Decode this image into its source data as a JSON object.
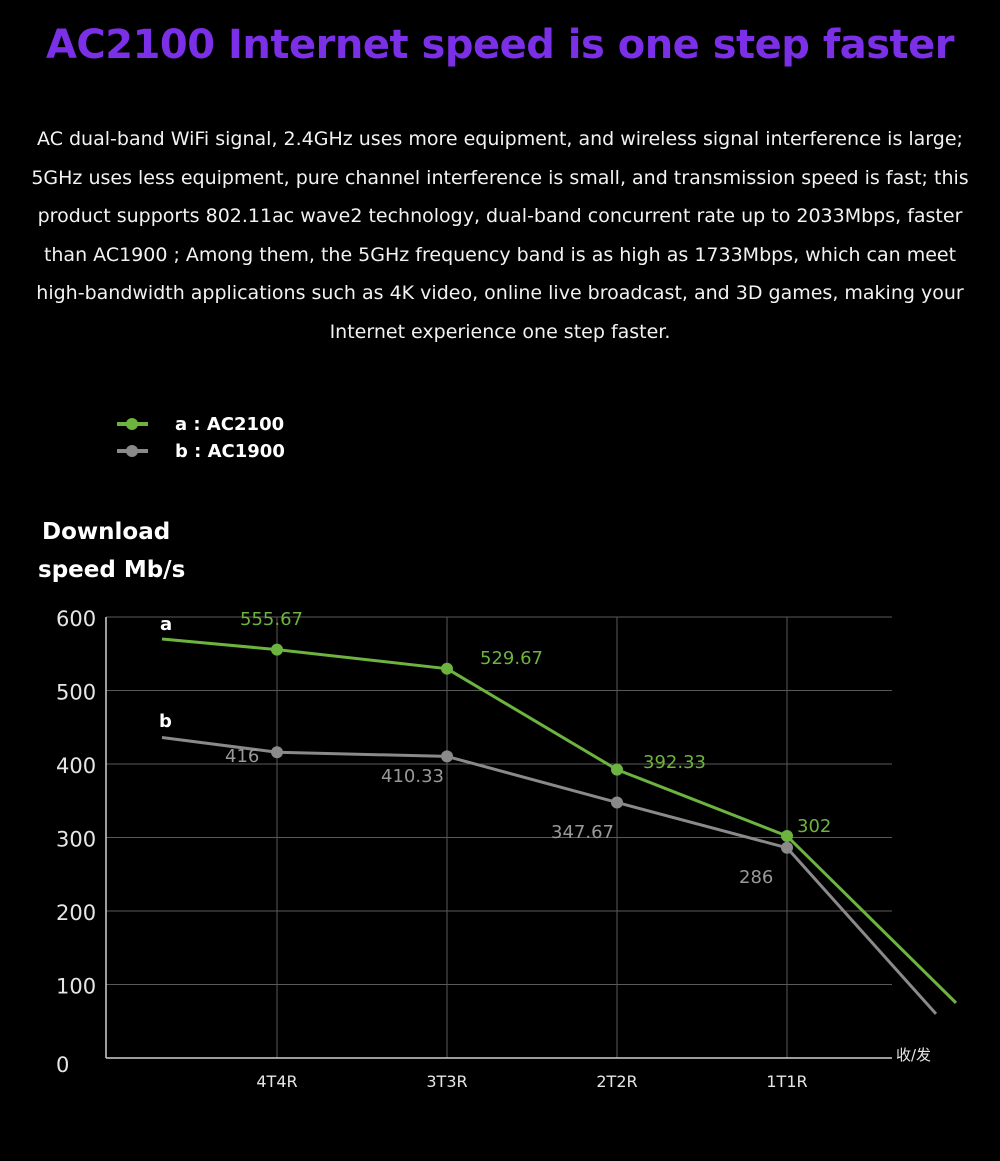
{
  "page": {
    "title": "AC2100 Internet speed is one step faster",
    "description": "AC dual-band WiFi signal, 2.4GHz uses more equipment, and wireless signal interference is large; 5GHz uses less equipment, pure channel interference is small, and transmission speed is fast; this product supports 802.11ac wave2 technology, dual-band concurrent rate up to 2033Mbps, faster than AC1900 ; Among them, the 5GHz frequency band is as high as 1733Mbps, which can meet high-bandwidth applications such as 4K video, online live broadcast, and 3D games, making your Internet experience one step faster."
  },
  "chart_data": {
    "type": "line",
    "ylabel_lines": [
      "Download",
      "speed Mb/s"
    ],
    "xlabel": "收/发",
    "categories": [
      "4T4R",
      "3T3R",
      "2T2R",
      "1T1R"
    ],
    "yticks": [
      "0",
      "100",
      "200",
      "300",
      "400",
      "500",
      "600"
    ],
    "ylim": [
      0,
      600
    ],
    "grid": true,
    "legend_position": "top-left",
    "series": [
      {
        "name": "a : AC2100",
        "short": "a",
        "color": "#6db33f",
        "values": [
          555.67,
          529.67,
          392.33,
          302
        ],
        "labels": [
          "555.67",
          "529.67",
          "392.33",
          "302"
        ],
        "start_value": 570,
        "end_value": 75
      },
      {
        "name": "b : AC1900",
        "short": "b",
        "color": "#8a8a8a",
        "label_color": "#999999",
        "values": [
          416,
          410.33,
          347.67,
          286
        ],
        "labels": [
          "416",
          "410.33",
          "347.67",
          "286"
        ],
        "start_value": 436,
        "end_value": 60
      }
    ]
  }
}
